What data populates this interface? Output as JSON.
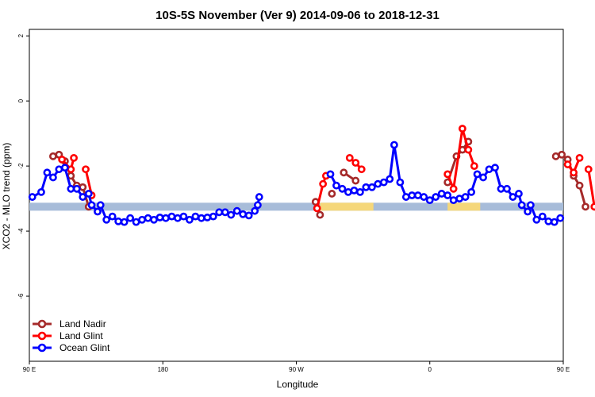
{
  "chart_data": {
    "type": "line",
    "title": "10S-5S November (Ver 9)   2014-09-06 to 2018-12-31",
    "xlabel": "Longitude",
    "ylabel": "XCO2 - MLO trend (ppm)",
    "xlim": [
      90,
      450
    ],
    "ylim": [
      -8,
      2.2
    ],
    "x_ticks": [
      {
        "value": 90,
        "label": "90 E"
      },
      {
        "value": 180,
        "label": "180"
      },
      {
        "value": 270,
        "label": "90 W"
      },
      {
        "value": 360,
        "label": "0"
      },
      {
        "value": 450,
        "label": "90 E"
      },
      {
        "value": 540,
        "label": "180"
      }
    ],
    "y_ticks": [
      {
        "value": 2,
        "label": "2"
      },
      {
        "value": 0,
        "label": "0"
      },
      {
        "value": -2,
        "label": "-2"
      },
      {
        "value": -4,
        "label": "-4"
      },
      {
        "value": -6,
        "label": "-6"
      }
    ],
    "legend_position": "bottom-left",
    "band": {
      "y": -3.25,
      "color": "#a7bcd9",
      "land_color": "#f5d77a",
      "land_segments": [
        [
          286,
          322
        ],
        [
          372,
          394
        ]
      ]
    },
    "series": [
      {
        "name": "Land Nadir",
        "color": "#a52a2a",
        "segments": [
          [
            [
              106,
              -1.7
            ],
            [
              110,
              -1.65
            ],
            [
              114,
              -1.85
            ],
            [
              118,
              -2.3
            ],
            [
              122,
              -2.6
            ],
            [
              126,
              -2.65
            ],
            [
              130,
              -3.25
            ]
          ],
          [
            [
              283,
              -3.1
            ],
            [
              286,
              -3.5
            ]
          ],
          [
            [
              294,
              -2.85
            ]
          ],
          [
            [
              302,
              -2.2
            ],
            [
              310,
              -2.45
            ]
          ],
          [
            [
              372,
              -2.5
            ],
            [
              378,
              -1.7
            ],
            [
              382,
              -1.5
            ],
            [
              386,
              -1.25
            ]
          ],
          [
            [
              445,
              -1.7
            ],
            [
              449,
              -1.65
            ],
            [
              453,
              -1.8
            ],
            [
              457,
              -2.3
            ],
            [
              461,
              -2.6
            ],
            [
              465,
              -3.25
            ]
          ]
        ]
      },
      {
        "name": "Land Glint",
        "color": "#ff0000",
        "segments": [
          [
            [
              112,
              -1.8
            ],
            [
              118,
              -2.1
            ],
            [
              120,
              -1.75
            ]
          ],
          [
            [
              128,
              -2.1
            ],
            [
              132,
              -2.9
            ]
          ],
          [
            [
              284,
              -3.3
            ],
            [
              288,
              -2.55
            ],
            [
              290,
              -2.3
            ]
          ],
          [
            [
              306,
              -1.75
            ],
            [
              310,
              -1.9
            ],
            [
              314,
              -2.1
            ]
          ],
          [
            [
              372,
              -2.25
            ],
            [
              376,
              -2.7
            ],
            [
              382,
              -0.85
            ],
            [
              386,
              -1.5
            ],
            [
              390,
              -2.0
            ]
          ],
          [
            [
              453,
              -1.95
            ],
            [
              457,
              -2.2
            ],
            [
              461,
              -1.75
            ]
          ],
          [
            [
              467,
              -2.1
            ],
            [
              471,
              -3.25
            ],
            [
              475,
              -2.9
            ]
          ]
        ]
      },
      {
        "name": "Ocean Glint",
        "color": "#0000ff",
        "segments": [
          [
            [
              92,
              -2.95
            ],
            [
              98,
              -2.8
            ],
            [
              102,
              -2.2
            ],
            [
              106,
              -2.35
            ],
            [
              110,
              -2.1
            ],
            [
              114,
              -2.05
            ],
            [
              118,
              -2.7
            ],
            [
              122,
              -2.7
            ],
            [
              126,
              -2.95
            ],
            [
              130,
              -2.85
            ],
            [
              132,
              -3.2
            ],
            [
              136,
              -3.4
            ],
            [
              138,
              -3.2
            ],
            [
              142,
              -3.65
            ],
            [
              146,
              -3.55
            ],
            [
              150,
              -3.7
            ],
            [
              154,
              -3.72
            ],
            [
              158,
              -3.6
            ],
            [
              162,
              -3.72
            ],
            [
              166,
              -3.65
            ],
            [
              170,
              -3.6
            ],
            [
              174,
              -3.65
            ],
            [
              178,
              -3.58
            ],
            [
              182,
              -3.6
            ],
            [
              186,
              -3.55
            ],
            [
              190,
              -3.6
            ],
            [
              194,
              -3.55
            ],
            [
              198,
              -3.65
            ],
            [
              202,
              -3.55
            ],
            [
              206,
              -3.6
            ],
            [
              210,
              -3.58
            ],
            [
              214,
              -3.55
            ],
            [
              218,
              -3.42
            ],
            [
              222,
              -3.42
            ],
            [
              226,
              -3.5
            ],
            [
              230,
              -3.38
            ],
            [
              234,
              -3.48
            ],
            [
              238,
              -3.52
            ],
            [
              242,
              -3.38
            ],
            [
              244,
              -3.2
            ],
            [
              245,
              -2.95
            ]
          ],
          [
            [
              293,
              -2.25
            ],
            [
              297,
              -2.6
            ],
            [
              301,
              -2.7
            ],
            [
              305,
              -2.8
            ],
            [
              309,
              -2.75
            ],
            [
              313,
              -2.8
            ],
            [
              317,
              -2.65
            ],
            [
              321,
              -2.65
            ],
            [
              325,
              -2.55
            ],
            [
              329,
              -2.5
            ],
            [
              333,
              -2.4
            ],
            [
              336,
              -1.35
            ],
            [
              340,
              -2.5
            ],
            [
              344,
              -2.95
            ],
            [
              348,
              -2.9
            ],
            [
              352,
              -2.9
            ],
            [
              356,
              -2.95
            ],
            [
              360,
              -3.05
            ],
            [
              364,
              -2.95
            ],
            [
              368,
              -2.85
            ],
            [
              372,
              -2.9
            ],
            [
              376,
              -3.05
            ],
            [
              380,
              -3.0
            ],
            [
              384,
              -2.95
            ],
            [
              388,
              -2.8
            ],
            [
              392,
              -2.25
            ],
            [
              396,
              -2.35
            ],
            [
              400,
              -2.1
            ],
            [
              404,
              -2.05
            ],
            [
              408,
              -2.7
            ],
            [
              412,
              -2.7
            ],
            [
              416,
              -2.95
            ],
            [
              420,
              -2.85
            ],
            [
              422,
              -3.2
            ],
            [
              426,
              -3.4
            ],
            [
              428,
              -3.2
            ],
            [
              432,
              -3.65
            ],
            [
              436,
              -3.55
            ],
            [
              440,
              -3.7
            ],
            [
              444,
              -3.72
            ],
            [
              448,
              -3.6
            ]
          ]
        ]
      }
    ],
    "x_scale_note_free": true
  }
}
